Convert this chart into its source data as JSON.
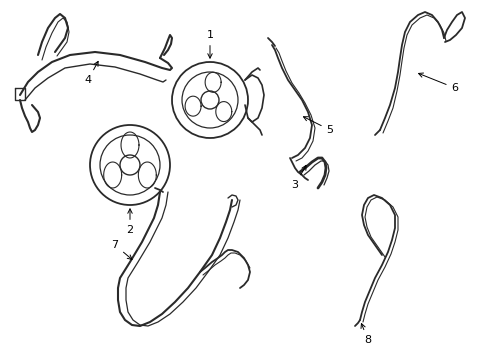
{
  "background": "#ffffff",
  "lc": "#2a2a2a",
  "figsize": [
    4.89,
    3.6
  ],
  "dpi": 100
}
